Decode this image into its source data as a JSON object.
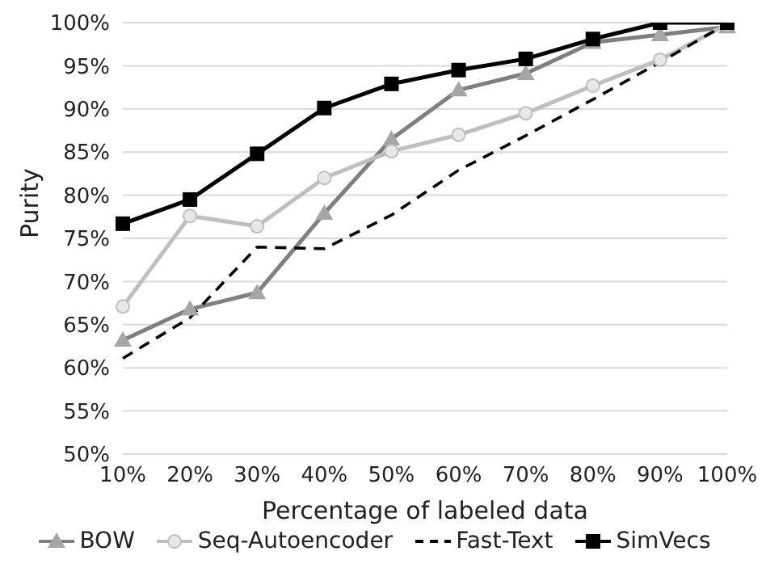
{
  "chart_data": {
    "type": "line",
    "xlabel": "Percentage of labeled data",
    "ylabel": "Purity",
    "categories": [
      "10%",
      "20%",
      "30%",
      "40%",
      "50%",
      "60%",
      "70%",
      "80%",
      "90%",
      "100%"
    ],
    "series": [
      {
        "name": "BOW",
        "color": "#7f7f7f",
        "marker": "triangle",
        "line_style": "solid",
        "values": [
          63.2,
          66.8,
          68.7,
          77.9,
          86.5,
          92.2,
          94.1,
          97.7,
          98.6,
          99.5
        ]
      },
      {
        "name": "Seq-Autoencoder",
        "color": "#bfbfbf",
        "marker": "circle",
        "line_style": "solid",
        "values": [
          67.1,
          77.6,
          76.4,
          82.0,
          85.1,
          87.0,
          89.5,
          92.7,
          95.7,
          99.8
        ]
      },
      {
        "name": "Fast-Text",
        "color": "#000000",
        "marker": "none",
        "line_style": "dashed",
        "values": [
          61.1,
          65.8,
          74.0,
          73.8,
          77.7,
          82.9,
          86.9,
          91.1,
          95.4,
          99.9
        ]
      },
      {
        "name": "SimVecs",
        "color": "#000000",
        "marker": "square",
        "line_style": "solid",
        "values": [
          76.7,
          79.5,
          84.8,
          90.1,
          92.9,
          94.5,
          95.8,
          98.1,
          100,
          100
        ]
      }
    ],
    "ylim": [
      50,
      100
    ],
    "yticks": [
      {
        "value": 50,
        "label": "50%"
      },
      {
        "value": 55,
        "label": "55%"
      },
      {
        "value": 60,
        "label": "60%"
      },
      {
        "value": 65,
        "label": "65%"
      },
      {
        "value": 70,
        "label": "70%"
      },
      {
        "value": 75,
        "label": "75%"
      },
      {
        "value": 80,
        "label": "80%"
      },
      {
        "value": 85,
        "label": "85%"
      },
      {
        "value": 90,
        "label": "90%"
      },
      {
        "value": 95,
        "label": "95%"
      },
      {
        "value": 100,
        "label": "100%"
      }
    ],
    "grid": "y",
    "legend": "bottom"
  }
}
